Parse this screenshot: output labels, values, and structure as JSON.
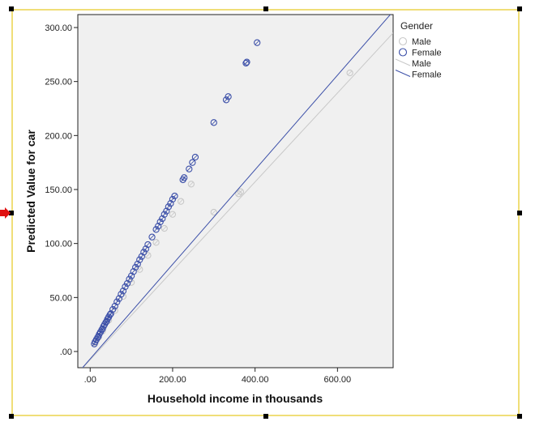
{
  "chart_data": {
    "type": "scatter",
    "xlabel": "Household income in thousands",
    "ylabel": "Predicted Value for car",
    "xlim": [
      -30,
      735
    ],
    "ylim": [
      -15,
      312
    ],
    "xticks": [
      0,
      200,
      400,
      600
    ],
    "xtick_labels": [
      ".00",
      "200.00",
      "400.00",
      "600.00"
    ],
    "yticks": [
      0,
      50,
      100,
      150,
      200,
      250,
      300
    ],
    "ytick_labels": [
      ".00",
      "50.00",
      "100.00",
      "150.00",
      "200.00",
      "250.00",
      "300.00"
    ],
    "plot_background": "#f0f0f0",
    "grid": false,
    "legend": {
      "title": "Gender",
      "placement": "right",
      "entries": [
        {
          "label": "Male",
          "kind": "marker",
          "color": "#c8c8c8"
        },
        {
          "label": "Female",
          "kind": "marker",
          "color": "#3b4fa8"
        },
        {
          "label": "Male",
          "kind": "line",
          "color": "#c8c8c8"
        },
        {
          "label": "Female",
          "kind": "line",
          "color": "#3b4fa8"
        }
      ]
    },
    "series": [
      {
        "name": "Female",
        "color": "#3b4fa8",
        "x": [
          10,
          12,
          15,
          18,
          20,
          22,
          25,
          28,
          30,
          32,
          35,
          38,
          40,
          42,
          45,
          48,
          50,
          55,
          60,
          65,
          70,
          75,
          80,
          85,
          90,
          95,
          100,
          105,
          110,
          115,
          120,
          125,
          130,
          135,
          140,
          150,
          160,
          165,
          170,
          175,
          180,
          185,
          190,
          195,
          200,
          205,
          225,
          228,
          240,
          248,
          255,
          300,
          330,
          335,
          378,
          380,
          405
        ],
        "y": [
          7,
          9,
          11,
          13,
          14,
          16,
          18,
          20,
          21,
          23,
          25,
          27,
          28,
          30,
          32,
          34,
          35,
          39,
          42,
          46,
          49,
          53,
          56,
          60,
          63,
          67,
          70,
          74,
          78,
          81,
          85,
          88,
          92,
          95,
          99,
          106,
          113,
          116,
          120,
          123,
          127,
          130,
          134,
          137,
          141,
          144,
          159,
          161,
          169,
          175,
          180,
          212,
          233,
          236,
          267,
          268,
          286
        ],
        "fit_line": [
          [
            -30,
            -20
          ],
          [
            735,
            315
          ]
        ]
      },
      {
        "name": "Male",
        "color": "#c8c8c8",
        "x": [
          12,
          20,
          30,
          45,
          60,
          80,
          100,
          120,
          140,
          160,
          180,
          200,
          220,
          245,
          300,
          360,
          365,
          630
        ],
        "y": [
          8,
          13,
          19,
          29,
          38,
          51,
          64,
          76,
          89,
          101,
          114,
          127,
          139,
          155,
          129,
          146,
          148,
          258
        ],
        "fit_line": [
          [
            -30,
            -20
          ],
          [
            735,
            295
          ]
        ]
      }
    ]
  }
}
